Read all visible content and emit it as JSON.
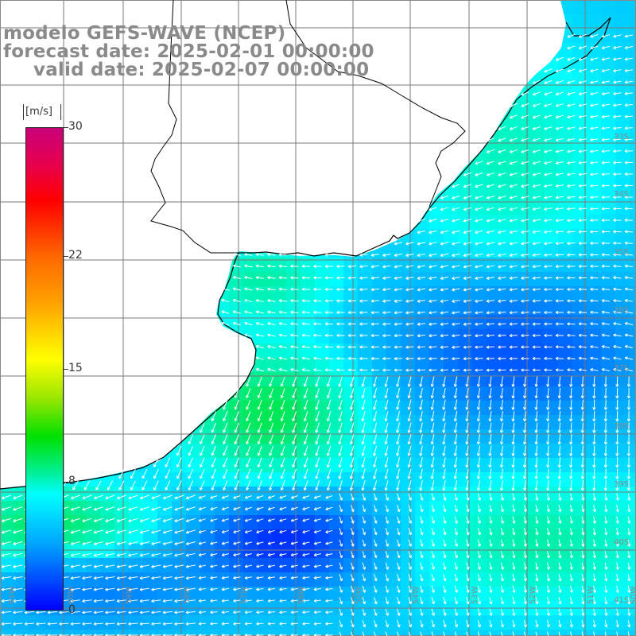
{
  "header": {
    "line1": "modelo GEFS-WAVE (NCEP)",
    "line2": "forecast date: 2025-02-01 00:00:00",
    "line3": "valid date: 2025-02-07 00:00:00"
  },
  "colorbar": {
    "unit": "[m/s]",
    "ticks": [
      "30",
      "22",
      "15",
      "8",
      "0"
    ],
    "tick_values": [
      30,
      22,
      15,
      8,
      0
    ],
    "colors": [
      "#0000ff",
      "#00a8ff",
      "#00ffff",
      "#00f0a0",
      "#00e000",
      "#9be600",
      "#ffff00",
      "#ff9f00",
      "#ff6a00",
      "#ff0000",
      "#e8004a",
      "#c8007a"
    ]
  },
  "grid": {
    "lat_labels": [
      "33S",
      "34S",
      "35S",
      "36S",
      "37S",
      "38S",
      "39S",
      "40S",
      "41S"
    ],
    "lon_labels": [
      "61W",
      "60W",
      "59W",
      "58W",
      "57W",
      "56W",
      "55W",
      "54W",
      "53W",
      "52W",
      "51W",
      "50W"
    ]
  },
  "colors": {
    "land": "#ffffff",
    "coast": "#000000",
    "grid": "#808080",
    "arrow": "#ffffff",
    "title": "#8a8a8a"
  }
}
